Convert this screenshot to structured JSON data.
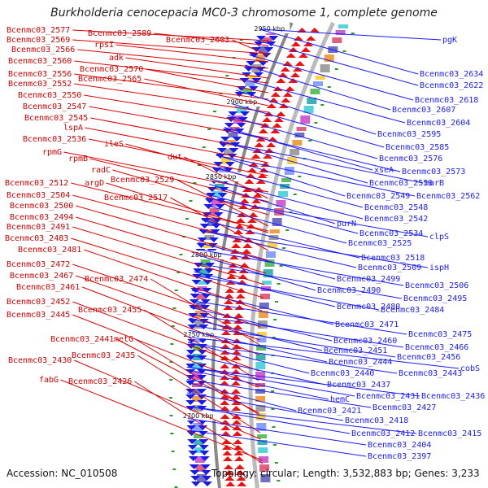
{
  "title": "Burkholderia cenocepacia MC0-3 chromosome 1, complete genome",
  "accession": "Accession: NC_010508",
  "topology": "Topology: circular; Length: 3,532,883 bp; Genes: 3,233",
  "kbp_marks": [
    "2950 kbp",
    "2900 kbp",
    "2850 kbp",
    "2800 kbp",
    "2750 kbp",
    "2700 kbp"
  ],
  "left_labels": [
    "Bcenmc03_2577",
    "Bcenmc03_2589",
    "Bcenmc03_2569",
    "Bcenmc03_2603",
    "rpsI",
    "Bcenmc03_2566",
    "adk",
    "Bcenmc03_2560",
    "Bcenmc03_2570",
    "Bcenmc03_2556",
    "Bcenmc03_2565",
    "Bcenmc03_2552",
    "Bcenmc03_2550",
    "Bcenmc03_2547",
    "Bcenmc03_2545",
    "lspA",
    "Bcenmc03_2536",
    "ileS",
    "rpmG",
    "dut",
    "rpmB",
    "radC",
    "Bcenmc03_2529",
    "Bcenmc03_2512",
    "argD",
    "Bcenmc03_2504",
    "Bcenmc03_2517",
    "Bcenmc03_2500",
    "Bcenmc03_2494",
    "Bcenmc03_2491",
    "Bcenmc03_2483",
    "Bcenmc03_2481",
    "Bcenmc03_2472",
    "Bcenmc03_2467",
    "Bcenmc03_2474",
    "Bcenmc03_2461",
    "Bcenmc03_2452",
    "Bcenmc03_2455",
    "Bcenmc03_2445",
    "Bcenmc03_2441",
    "metG",
    "Bcenmc03_2435",
    "Bcenmc03_2430",
    "fabG",
    "Bcenmc03_2426"
  ],
  "right_labels": [
    "pgK",
    "Bcenmc03_2634",
    "Bcenmc03_2622",
    "Bcenmc03_2618",
    "Bcenmc03_2607",
    "Bcenmc03_2604",
    "Bcenmc03_2595",
    "Bcenmc03_2585",
    "Bcenmc03_2576",
    "xseA",
    "Bcenmc03_2573",
    "Bcenmc03_2559",
    "murB",
    "Bcenmc03_2549",
    "Bcenmc03_2562",
    "Bcenmc03_2548",
    "Bcenmc03_2542",
    "purN",
    "Bcenmc03_2534",
    "clpS",
    "Bcenmc03_2525",
    "Bcenmc03_2518",
    "Bcenmc03_2509",
    "ispH",
    "Bcenmc03_2499",
    "Bcenmc03_2506",
    "Bcenmc03_2490",
    "Bcenmc03_2495",
    "Bcenmc03_2480",
    "Bcenmc03_2484",
    "Bcenmc03_2471",
    "Bcenmc03_2475",
    "Bcenmc03_2460",
    "Bcenmc03_2466",
    "Bcenmc03_2451",
    "Bcenmc03_2456",
    "Bcenmc03_2444",
    "cobS",
    "Bcenmc03_2440",
    "Bcenmc03_2443",
    "Bcenmc03_2437",
    "hemC",
    "Bcenmc03_2431",
    "Bcenmc03_2436",
    "Bcenmc03_2421",
    "Bcenmc03_2427",
    "Bcenmc03_2418",
    "Bcenmc03_2412",
    "Bcenmc03_2415",
    "Bcenmc03_2404",
    "Bcenmc03_2397"
  ]
}
